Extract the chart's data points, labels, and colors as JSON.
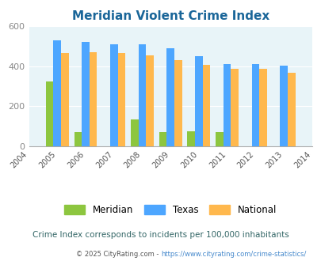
{
  "title": "Meridian Violent Crime Index",
  "years": [
    2004,
    2005,
    2006,
    2007,
    2008,
    2009,
    2010,
    2011,
    2012,
    2013,
    2014
  ],
  "bar_years": [
    2005,
    2006,
    2007,
    2008,
    2009,
    2010,
    2011,
    2012,
    2013
  ],
  "meridian": [
    325,
    70,
    0,
    135,
    70,
    75,
    70,
    0,
    0
  ],
  "texas": [
    530,
    520,
    510,
    510,
    490,
    450,
    410,
    410,
    402
  ],
  "national": [
    465,
    470,
    465,
    455,
    430,
    405,
    387,
    387,
    365
  ],
  "color_meridian": "#8dc63f",
  "color_texas": "#4da6ff",
  "color_national": "#ffb84d",
  "color_bg": "#e8f4f8",
  "color_title": "#1a6699",
  "color_xtick": "#555555",
  "color_ytick": "#888888",
  "color_subtitle": "#336666",
  "color_footnote_text": "#555555",
  "color_footnote_link": "#4488cc",
  "ylim": [
    0,
    600
  ],
  "yticks": [
    0,
    200,
    400,
    600
  ],
  "bar_width": 0.27,
  "legend_labels": [
    "Meridian",
    "Texas",
    "National"
  ],
  "subtitle": "Crime Index corresponds to incidents per 100,000 inhabitants",
  "footnote_text": "© 2025 CityRating.com - ",
  "footnote_link": "https://www.cityrating.com/crime-statistics/"
}
